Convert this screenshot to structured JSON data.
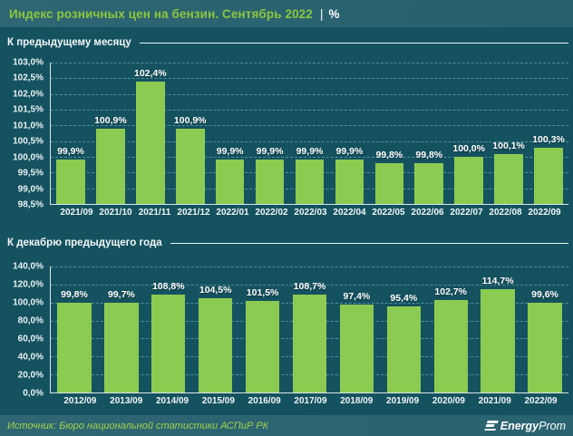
{
  "header": {
    "title": "Индекс розничных цен на бензин. Сентябрь 2022",
    "separator": "|",
    "unit": "%"
  },
  "colors": {
    "background": "#15525f",
    "band_background": "#2a6370",
    "accent_green_text": "#8dc63f",
    "bar_green": "#8ccb52",
    "gridline": "#4c90a1",
    "axis_line": "#d9e7ea",
    "label_white": "#ffffff"
  },
  "chart_data": [
    {
      "type": "bar",
      "title": "К предыдущему месяцу",
      "categories": [
        "2021/09",
        "2021/10",
        "2021/11",
        "2021/12",
        "2022/01",
        "2022/02",
        "2022/03",
        "2022/04",
        "2022/05",
        "2022/06",
        "2022/07",
        "2022/08",
        "2022/09"
      ],
      "values": [
        99.9,
        100.9,
        102.4,
        100.9,
        99.9,
        99.9,
        99.9,
        99.9,
        99.8,
        99.8,
        100.0,
        100.1,
        100.3
      ],
      "bar_labels": [
        "99,9%",
        "100,9%",
        "102,4%",
        "100,9%",
        "99,9%",
        "99,9%",
        "99,9%",
        "99,9%",
        "99,8%",
        "99,8%",
        "100,0%",
        "100,1%",
        "100,3%"
      ],
      "ylim": [
        98.5,
        103.0
      ],
      "ytick_step": 0.5,
      "ytick_labels_top_to_bottom": [
        "103,0%",
        "102,5%",
        "102,0%",
        "101,5%",
        "101,0%",
        "100,5%",
        "100,0%",
        "99,5%",
        "99,0%",
        "98,5%"
      ],
      "grid": true,
      "legend": "none"
    },
    {
      "type": "bar",
      "title": "К декабрю предыдущего года",
      "categories": [
        "2012/09",
        "2013/09",
        "2014/09",
        "2015/09",
        "2016/09",
        "2017/09",
        "2018/09",
        "2019/09",
        "2020/09",
        "2021/09",
        "2022/09"
      ],
      "values": [
        99.8,
        99.7,
        108.8,
        104.5,
        101.5,
        108.7,
        97.4,
        95.4,
        102.7,
        114.7,
        99.6
      ],
      "bar_labels": [
        "99,8%",
        "99,7%",
        "108,8%",
        "104,5%",
        "101,5%",
        "108,7%",
        "97,4%",
        "95,4%",
        "102,7%",
        "114,7%",
        "99,6%"
      ],
      "ylim": [
        0,
        140
      ],
      "ytick_step": 20,
      "ytick_labels_top_to_bottom": [
        "140,0%",
        "120,0%",
        "100,0%",
        "80,0%",
        "60,0%",
        "40,0%",
        "20,0%",
        "0,0%"
      ],
      "grid": true,
      "legend": "none"
    }
  ],
  "footer": {
    "source": "Источник: Бюро национальной статистики АСПиР РК",
    "logo": {
      "icon": "energyprom-e-icon",
      "bold": "Energy",
      "regular": "Prom"
    }
  }
}
